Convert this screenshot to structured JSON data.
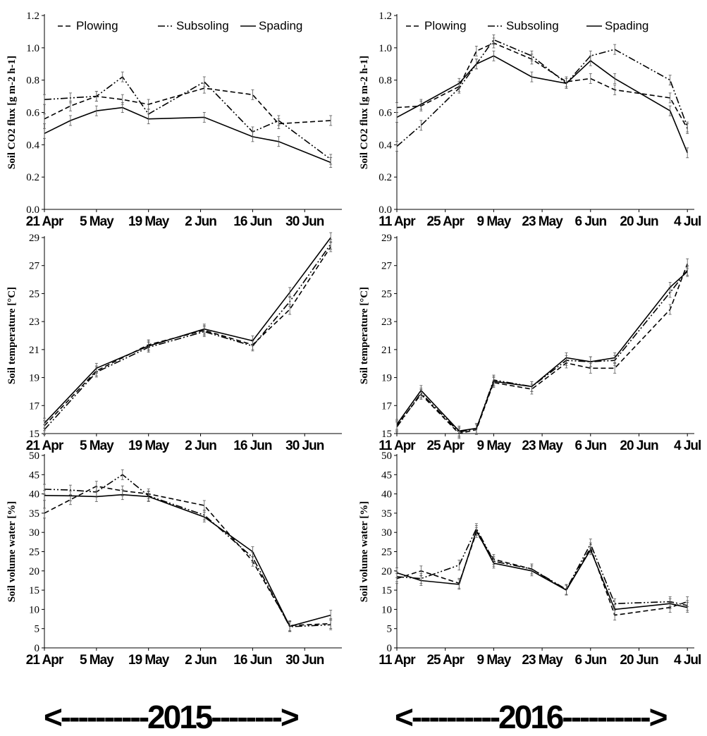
{
  "year_banners": [
    "<----------2015-------->",
    "<----------2016---------->"
  ],
  "legend_labels": {
    "plowing": "Plowing",
    "subsoling": "Subsoling",
    "spading": "Spading"
  },
  "chart_data": [
    {
      "type": "line",
      "year": "2015",
      "ylabel": "Soil CO2 flux [g m-2 h-1]",
      "ylim": [
        0,
        1.2
      ],
      "yticks": [
        "0.0",
        "0.2",
        "0.4",
        "0.6",
        "0.8",
        "1.0",
        "1.2"
      ],
      "xticks": [
        "21 Apr",
        "5 May",
        "19 May",
        "2 Jun",
        "16 Jun",
        "30 Jun"
      ],
      "legend": "top",
      "x": [
        "21 Apr",
        "28 Apr",
        "5 May",
        "12 May",
        "19 May",
        "3 Jun",
        "16 Jun",
        "23 Jun",
        "7 Jul"
      ],
      "series": [
        {
          "name": "Plowing",
          "values": [
            0.56,
            0.64,
            0.7,
            0.68,
            0.65,
            0.75,
            0.71,
            0.53,
            0.55
          ]
        },
        {
          "name": "Subsoling",
          "values": [
            0.68,
            0.69,
            0.7,
            0.82,
            0.59,
            0.79,
            0.48,
            0.55,
            0.31
          ]
        },
        {
          "name": "Spading",
          "values": [
            0.47,
            0.55,
            0.61,
            0.63,
            0.56,
            0.57,
            0.45,
            0.42,
            0.29
          ]
        }
      ]
    },
    {
      "type": "line",
      "year": "2016",
      "ylabel": "Soil CO2 flux [g m-2 h-1]",
      "ylim": [
        0,
        1.2
      ],
      "yticks": [
        "0.0",
        "0.2",
        "0.4",
        "0.6",
        "0.8",
        "1.0",
        "1.2"
      ],
      "xticks": [
        "11 Apr",
        "25 Apr",
        "9 May",
        "23 May",
        "6 Jun",
        "20 Jun",
        "4 Jul"
      ],
      "legend": "top",
      "x": [
        "11 Apr",
        "18 Apr",
        "29 Apr",
        "4 May",
        "9 May",
        "20 May",
        "30 May",
        "6 Jun",
        "13 Jun",
        "29 Jun",
        "4 Jul"
      ],
      "series": [
        {
          "name": "Plowing",
          "values": [
            0.63,
            0.64,
            0.76,
            0.98,
            1.03,
            0.93,
            0.79,
            0.81,
            0.74,
            0.69,
            0.5
          ]
        },
        {
          "name": "Subsoling",
          "values": [
            0.39,
            0.52,
            0.75,
            0.9,
            1.05,
            0.95,
            0.78,
            0.95,
            0.99,
            0.8,
            0.51
          ]
        },
        {
          "name": "Spading",
          "values": [
            0.57,
            0.65,
            0.78,
            0.9,
            0.95,
            0.82,
            0.78,
            0.92,
            0.81,
            0.61,
            0.35
          ]
        }
      ]
    },
    {
      "type": "line",
      "year": "2015",
      "ylabel": "Soil temperature [°C]",
      "ylim": [
        15,
        30
      ],
      "yticks": [
        "15",
        "17",
        "19",
        "21",
        "23",
        "25",
        "27",
        "29"
      ],
      "xticks": [
        "21 Apr",
        "5 May",
        "19 May",
        "2 Jun",
        "16 Jun",
        "30 Jun"
      ],
      "x": [
        "21 Apr",
        "5 May",
        "19 May",
        "3 Jun",
        "16 Jun",
        "26 Jun",
        "7 Jul"
      ],
      "series": [
        {
          "name": "Plowing",
          "values": [
            15.6,
            19.8,
            21.8,
            22.9,
            21.8,
            24.5,
            29.3
          ]
        },
        {
          "name": "Subsoling",
          "values": [
            15.3,
            19.7,
            21.6,
            22.8,
            21.7,
            25.1,
            29.5
          ]
        },
        {
          "name": "Spading",
          "values": [
            15.8,
            20.0,
            21.7,
            23.0,
            22.1,
            25.8,
            30.0
          ]
        }
      ]
    },
    {
      "type": "line",
      "year": "2016",
      "ylabel": "Soil temperature [°C]",
      "ylim": [
        15,
        30
      ],
      "yticks": [
        "15",
        "17",
        "19",
        "21",
        "23",
        "25",
        "27",
        "29"
      ],
      "xticks": [
        "11 Apr",
        "25 Apr",
        "9 May",
        "23 May",
        "6 Jun",
        "20 Jun",
        "4 Jul"
      ],
      "x": [
        "11 Apr",
        "18 Apr",
        "29 Apr",
        "4 May",
        "9 May",
        "20 May",
        "30 May",
        "6 Jun",
        "13 Jun",
        "29 Jun",
        "4 Jul"
      ],
      "series": [
        {
          "name": "Plowing",
          "values": [
            15.6,
            18.0,
            15.0,
            15.3,
            18.9,
            18.4,
            20.4,
            20.0,
            20.0,
            24.5,
            28.0
          ]
        },
        {
          "name": "Subsoling",
          "values": [
            15.5,
            18.1,
            15.1,
            15.4,
            19.1,
            18.6,
            20.6,
            20.5,
            20.6,
            25.8,
            27.5
          ]
        },
        {
          "name": "Spading",
          "values": [
            15.7,
            18.3,
            15.2,
            15.4,
            19.0,
            18.6,
            20.8,
            20.5,
            20.8,
            26.2,
            27.4
          ]
        }
      ]
    },
    {
      "type": "line",
      "year": "2015",
      "ylabel": "Soil volume water [%]",
      "ylim": [
        0,
        50
      ],
      "yticks": [
        "0",
        "5",
        "10",
        "15",
        "20",
        "25",
        "30",
        "35",
        "40",
        "45",
        "50"
      ],
      "xticks": [
        "21 Apr",
        "5 May",
        "19 May",
        "2 Jun",
        "16 Jun",
        "30 Jun"
      ],
      "x": [
        "21 Apr",
        "28 Apr",
        "5 May",
        "12 May",
        "19 May",
        "3 Jun",
        "16 Jun",
        "26 Jun",
        "7 Jul"
      ],
      "series": [
        {
          "name": "Plowing",
          "values": [
            35.0,
            38.5,
            42.0,
            40.8,
            40.0,
            37.0,
            22.5,
            5.8,
            6.3
          ]
        },
        {
          "name": "Subsoling",
          "values": [
            41.2,
            41.0,
            40.5,
            45.0,
            39.5,
            34.5,
            23.5,
            5.5,
            6.0
          ]
        },
        {
          "name": "Spading",
          "values": [
            39.6,
            39.5,
            39.3,
            39.8,
            39.3,
            34.0,
            25.0,
            5.6,
            8.5
          ]
        }
      ]
    },
    {
      "type": "line",
      "year": "2016",
      "ylabel": "Soil volume water [%]",
      "ylim": [
        0,
        50
      ],
      "yticks": [
        "0",
        "5",
        "10",
        "15",
        "20",
        "25",
        "30",
        "35",
        "40",
        "45",
        "50"
      ],
      "xticks": [
        "11 Apr",
        "25 Apr",
        "9 May",
        "23 May",
        "6 Jun",
        "20 Jun",
        "4 Jul"
      ],
      "x": [
        "11 Apr",
        "18 Apr",
        "29 Apr",
        "4 May",
        "9 May",
        "20 May",
        "30 May",
        "6 Jun",
        "13 Jun",
        "29 Jun",
        "4 Jul"
      ],
      "series": [
        {
          "name": "Plowing",
          "values": [
            18.0,
            20.0,
            16.8,
            30.0,
            23.0,
            20.5,
            15.0,
            26.0,
            8.5,
            10.5,
            12.0
          ]
        },
        {
          "name": "Subsoling",
          "values": [
            18.5,
            18.0,
            21.5,
            31.0,
            22.5,
            20.5,
            15.2,
            27.0,
            11.5,
            12.0,
            11.0
          ]
        },
        {
          "name": "Spading",
          "values": [
            19.5,
            17.5,
            16.5,
            30.5,
            22.0,
            20.0,
            15.0,
            25.5,
            10.0,
            11.5,
            10.5
          ]
        }
      ]
    }
  ],
  "colors": {
    "line": "#000000",
    "axis": "#000000"
  }
}
